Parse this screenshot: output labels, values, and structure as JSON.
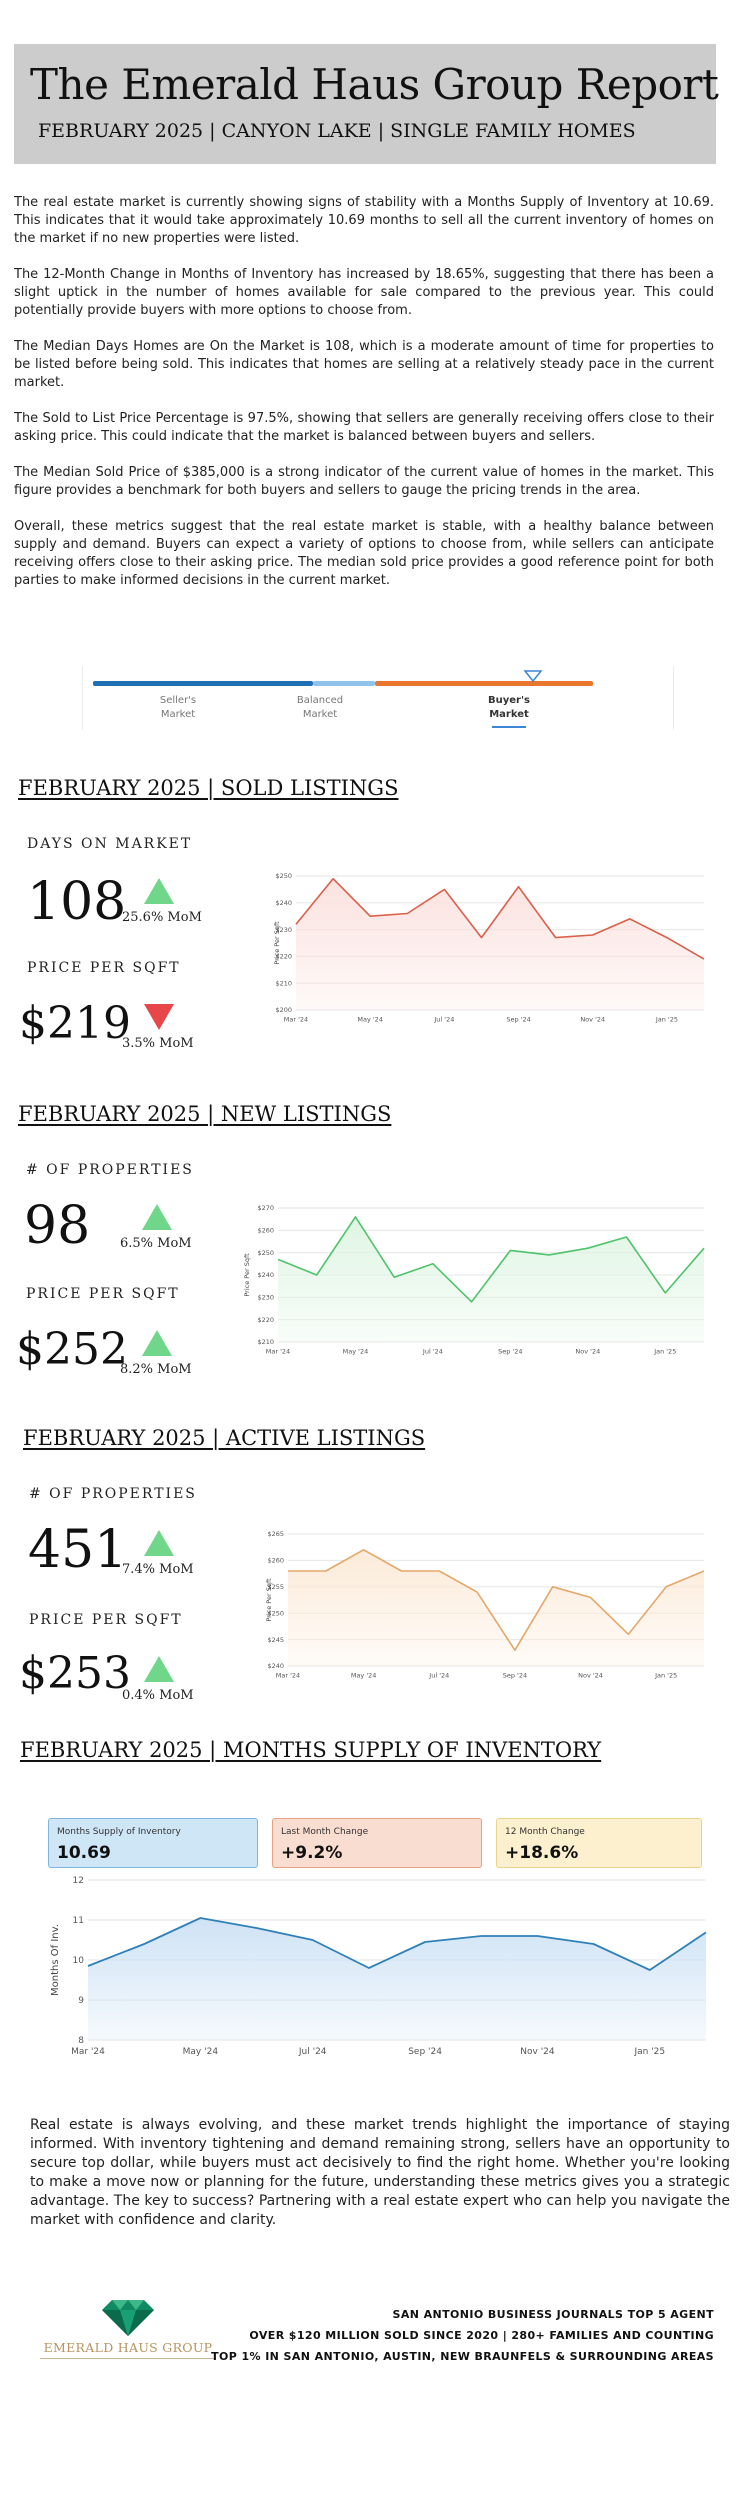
{
  "header": {
    "title": "The Emerald Haus Group Report",
    "subtitle": "FEBRUARY 2025 | CANYON LAKE | SINGLE FAMILY HOMES"
  },
  "intro": [
    "The real estate market is currently showing signs of stability with a Months Supply of Inventory at 10.69. This indicates that it would take approximately 10.69 months to sell all the current inventory of homes on the market if no new properties were listed.",
    "The 12-Month Change in Months of Inventory has increased by 18.65%, suggesting that there has been a slight uptick in the number of homes available for sale compared to the previous year. This could potentially provide buyers with more options to choose from.",
    "The Median Days Homes are On the Market is 108, which is a moderate amount of time for properties to be listed before being sold. This indicates that homes are selling at a relatively steady pace in the current market.",
    "The Sold to List Price Percentage is 97.5%, showing that sellers are generally receiving offers close to their asking price. This could indicate that the market is balanced between buyers and sellers.",
    "The Median Sold Price of $385,000 is a strong indicator of the current value of homes in the market. This figure provides a benchmark for both buyers and sellers to gauge the pricing trends in the area.",
    "Overall, these metrics suggest that the real estate market is stable, with a healthy balance between supply and demand. Buyers can expect a variety of options to choose from, while sellers can anticipate receiving offers close to their asking price. The median sold price provides a good reference point for both parties to make informed decisions in the current market."
  ],
  "market_scale": {
    "labels": [
      "Seller's\nMarket",
      "Balanced\nMarket",
      "Buyer's\nMarket"
    ],
    "seller": [
      "Seller's",
      "Market"
    ],
    "balanced": [
      "Balanced",
      "Market"
    ],
    "buyer": [
      "Buyer's",
      "Market"
    ],
    "active": "buyer",
    "indicator_position": 0.88,
    "colors": {
      "seller": "#1f6fb5",
      "balanced": "#8ec3ec",
      "buyer": "#e8762c",
      "indicator": "#3b87d6"
    }
  },
  "sold": {
    "title": "FEBRUARY 2025 | SOLD LISTINGS",
    "m1_label": "DAYS ON MARKET",
    "m1_value": "108",
    "m1_change": "25.6% MoM",
    "m1_dir": "up",
    "m2_label": "PRICE PER SQFT",
    "m2_value": "$219",
    "m2_change": "3.5% MoM",
    "m2_dir": "down"
  },
  "new": {
    "title": "FEBRUARY 2025 | NEW LISTINGS",
    "m1_label": "# OF PROPERTIES",
    "m1_value": "98",
    "m1_change": "6.5% MoM",
    "m1_dir": "up",
    "m2_label": "PRICE PER SQFT",
    "m2_value": "$252",
    "m2_change": "8.2% MoM",
    "m2_dir": "up"
  },
  "active": {
    "title": "FEBRUARY 2025 | ACTIVE LISTINGS",
    "m1_label": "# OF PROPERTIES",
    "m1_value": "451",
    "m1_change": "7.4% MoM",
    "m1_dir": "up",
    "m2_label": "PRICE PER SQFT",
    "m2_value": "$253",
    "m2_change": "0.4% MoM",
    "m2_dir": "up"
  },
  "msi": {
    "title": "FEBRUARY 2025 | MONTHS SUPPLY OF INVENTORY",
    "boxes": [
      {
        "label": "Months Supply of Inventory",
        "value": "10.69"
      },
      {
        "label": "Last Month Change",
        "value": "+9.2%"
      },
      {
        "label": "12 Month Change",
        "value": "+18.6%"
      }
    ]
  },
  "chart_data": [
    {
      "id": "sold",
      "type": "area",
      "ylabel": "Price Per Sqft",
      "ylim": [
        200,
        250
      ],
      "yticks": [
        "$200",
        "$210",
        "$220",
        "$230",
        "$240",
        "$250"
      ],
      "x": [
        "Mar '24",
        "Apr '24",
        "May '24",
        "Jun '24",
        "Jul '24",
        "Aug '24",
        "Sep '24",
        "Oct '24",
        "Nov '24",
        "Dec '24",
        "Jan '25",
        "Feb '25"
      ],
      "xticks": [
        "Mar '24",
        "May '24",
        "Jul '24",
        "Sep '24",
        "Nov '24",
        "Jan '25"
      ],
      "values": [
        232,
        249,
        235,
        236,
        245,
        227,
        246,
        227,
        228,
        234,
        227,
        219
      ],
      "color": "#d9604a",
      "fill": "#fbe2df",
      "grid": true
    },
    {
      "id": "new",
      "type": "area",
      "ylabel": "Price Per Sqft",
      "ylim": [
        210,
        270
      ],
      "yticks": [
        "$210",
        "$220",
        "$230",
        "$240",
        "$250",
        "$260",
        "$270"
      ],
      "x": [
        "Mar '24",
        "Apr '24",
        "May '24",
        "Jun '24",
        "Jul '24",
        "Aug '24",
        "Sep '24",
        "Oct '24",
        "Nov '24",
        "Dec '24",
        "Jan '25",
        "Feb '25"
      ],
      "xticks": [
        "Mar '24",
        "May '24",
        "Jul '24",
        "Sep '24",
        "Nov '24",
        "Jan '25"
      ],
      "values": [
        247,
        240,
        266,
        239,
        245,
        228,
        251,
        249,
        252,
        257,
        232,
        252
      ],
      "color": "#4ec36a",
      "fill": "#dff5e3",
      "grid": true
    },
    {
      "id": "active",
      "type": "area",
      "ylabel": "Price Per Sqft",
      "ylim": [
        240,
        265
      ],
      "yticks": [
        "$240",
        "$245",
        "$250",
        "$255",
        "$260",
        "$265"
      ],
      "x": [
        "Mar '24",
        "Apr '24",
        "May '24",
        "Jun '24",
        "Jul '24",
        "Aug '24",
        "Sep '24",
        "Oct '24",
        "Nov '24",
        "Dec '24",
        "Jan '25",
        "Feb '25"
      ],
      "xticks": [
        "Mar '24",
        "May '24",
        "Jul '24",
        "Sep '24",
        "Nov '24",
        "Jan '25"
      ],
      "values": [
        258,
        258,
        262,
        258,
        258,
        254,
        243,
        255,
        253,
        246,
        255,
        258
      ],
      "color": "#e6a76a",
      "fill": "#fcebd9",
      "grid": true
    },
    {
      "id": "msi",
      "type": "area",
      "ylabel": "Months Of Inv.",
      "ylim": [
        8,
        12
      ],
      "yticks": [
        "8",
        "9",
        "10",
        "11",
        "12"
      ],
      "x": [
        "Mar '24",
        "Apr '24",
        "May '24",
        "Jun '24",
        "Jul '24",
        "Aug '24",
        "Sep '24",
        "Oct '24",
        "Nov '24",
        "Dec '24",
        "Jan '25",
        "Feb '25"
      ],
      "xticks": [
        "Mar '24",
        "May '24",
        "Jul '24",
        "Sep '24",
        "Nov '24",
        "Jan '25"
      ],
      "values": [
        9.85,
        10.4,
        11.05,
        10.8,
        10.5,
        9.8,
        10.45,
        10.6,
        10.6,
        10.4,
        9.75,
        10.69
      ],
      "color": "#2f80b8",
      "fill": "#cfe3f5",
      "grid": true
    }
  ],
  "closing": "Real estate is always evolving, and these market trends highlight the importance of staying informed. With inventory tightening and demand remaining strong, sellers have an opportunity to secure top dollar, while buyers must act decisively to find the right home. Whether you're looking to make a move now or planning for the future, understanding these metrics gives you a strategic advantage. The key to success? Partnering with a real estate expert who can help you navigate the market with confidence and clarity.",
  "footer": {
    "logo_text": "EMERALD HAUS GROUP",
    "logo_icon": "emerald-gem-icon",
    "line1": "SAN ANTONIO BUSINESS JOURNALS TOP 5 AGENT",
    "line2": "OVER $120 MILLION SOLD SINCE 2020 | 280+ FAMILIES AND COUNTING",
    "line3": "TOP 1% IN SAN ANTONIO, AUSTIN, NEW BRAUNFELS & SURROUNDING AREAS"
  }
}
